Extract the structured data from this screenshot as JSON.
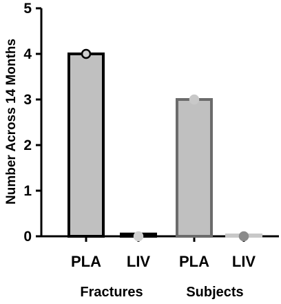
{
  "chart_data": {
    "type": "bar",
    "ylabel": "Number Across 14 Months",
    "xlabel": "",
    "ylim": [
      0,
      5
    ],
    "yticks": [
      "0",
      "1",
      "2",
      "3",
      "4",
      "5"
    ],
    "grid": false,
    "groups": [
      "Fractures",
      "Subjects"
    ],
    "categories": [
      "PLA",
      "LIV",
      "PLA",
      "LIV"
    ],
    "values": [
      4,
      0.05,
      3,
      0.03
    ],
    "points": [
      4,
      0,
      3,
      0
    ],
    "bar_fill": "#c0c0c0",
    "bar_edges": [
      "#000000",
      "#000000",
      "#6b6b6b",
      "#c8c8c8"
    ],
    "point_colors": [
      "#d0d0d0",
      "#d0d0d0",
      "#c8c8c8",
      "#8a8a8a"
    ],
    "point_edges": [
      "#000000",
      "#d0d0d0",
      "#c8c8c8",
      "#8a8a8a"
    ]
  }
}
